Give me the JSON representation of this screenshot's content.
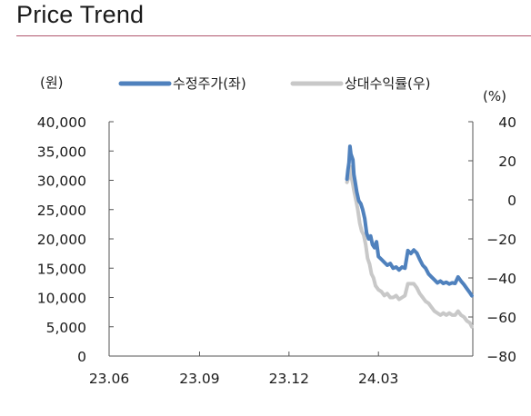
{
  "header": {
    "title": "Price Trend"
  },
  "chart_data": {
    "type": "line",
    "left_unit": "(원)",
    "right_unit": "(%)",
    "x_ticks": [
      "23.06",
      "23.09",
      "23.12",
      "24.03"
    ],
    "x_range": [
      "2023-06",
      "2024-07"
    ],
    "left_axis": {
      "ylim": [
        0,
        40000
      ],
      "ticks": [
        0,
        5000,
        10000,
        15000,
        20000,
        25000,
        30000,
        35000,
        40000
      ],
      "tick_labels": [
        "0",
        "5,000",
        "10,000",
        "15,000",
        "20,000",
        "25,000",
        "30,000",
        "35,000",
        "40,000"
      ]
    },
    "right_axis": {
      "ylim": [
        -80,
        40
      ],
      "ticks": [
        -80,
        -60,
        -40,
        -20,
        0,
        20,
        40
      ],
      "tick_labels": [
        "−80",
        "−60",
        "−40",
        "−20",
        "0",
        "20",
        "40"
      ]
    },
    "grid": false,
    "legend_position": "top",
    "series": [
      {
        "name": "수정주가(좌)",
        "axis": "left",
        "color": "#4f81bd",
        "points": [
          [
            "2024-01-29",
            30200
          ],
          [
            "2024-01-30",
            31800
          ],
          [
            "2024-01-31",
            33000
          ],
          [
            "2024-02-01",
            35800
          ],
          [
            "2024-02-02",
            34500
          ],
          [
            "2024-02-04",
            33500
          ],
          [
            "2024-02-05",
            31000
          ],
          [
            "2024-02-06",
            30000
          ],
          [
            "2024-02-08",
            28000
          ],
          [
            "2024-02-10",
            26500
          ],
          [
            "2024-02-12",
            26000
          ],
          [
            "2024-02-14",
            25000
          ],
          [
            "2024-02-16",
            23500
          ],
          [
            "2024-02-18",
            21000
          ],
          [
            "2024-02-20",
            20000
          ],
          [
            "2024-02-22",
            20500
          ],
          [
            "2024-02-24",
            19000
          ],
          [
            "2024-02-26",
            18500
          ],
          [
            "2024-02-28",
            19500
          ],
          [
            "2024-03-01",
            17000
          ],
          [
            "2024-03-04",
            16500
          ],
          [
            "2024-03-07",
            16000
          ],
          [
            "2024-03-10",
            15500
          ],
          [
            "2024-03-13",
            15800
          ],
          [
            "2024-03-16",
            15000
          ],
          [
            "2024-03-19",
            15200
          ],
          [
            "2024-03-22",
            14700
          ],
          [
            "2024-03-25",
            15200
          ],
          [
            "2024-03-28",
            15000
          ],
          [
            "2024-03-31",
            18000
          ],
          [
            "2024-04-03",
            17500
          ],
          [
            "2024-04-06",
            18100
          ],
          [
            "2024-04-09",
            17600
          ],
          [
            "2024-04-12",
            16500
          ],
          [
            "2024-04-15",
            15500
          ],
          [
            "2024-04-18",
            15000
          ],
          [
            "2024-04-21",
            14000
          ],
          [
            "2024-04-24",
            13500
          ],
          [
            "2024-04-27",
            13000
          ],
          [
            "2024-04-30",
            12500
          ],
          [
            "2024-05-03",
            12800
          ],
          [
            "2024-05-06",
            12400
          ],
          [
            "2024-05-09",
            12600
          ],
          [
            "2024-05-12",
            12300
          ],
          [
            "2024-05-15",
            12500
          ],
          [
            "2024-05-18",
            12400
          ],
          [
            "2024-05-21",
            13500
          ],
          [
            "2024-05-24",
            12800
          ],
          [
            "2024-05-27",
            12200
          ],
          [
            "2024-05-30",
            11500
          ],
          [
            "2024-06-02",
            10800
          ],
          [
            "2024-06-04",
            10300
          ]
        ]
      },
      {
        "name": "상대수익률(우)",
        "axis": "right",
        "color": "#c8c8c8",
        "points": [
          [
            "2024-01-29",
            9
          ],
          [
            "2024-01-31",
            12
          ],
          [
            "2024-02-01",
            17
          ],
          [
            "2024-02-02",
            13
          ],
          [
            "2024-02-04",
            8
          ],
          [
            "2024-02-05",
            5
          ],
          [
            "2024-02-07",
            0
          ],
          [
            "2024-02-09",
            -5
          ],
          [
            "2024-02-11",
            -12
          ],
          [
            "2024-02-13",
            -16
          ],
          [
            "2024-02-15",
            -18
          ],
          [
            "2024-02-17",
            -23
          ],
          [
            "2024-02-19",
            -30
          ],
          [
            "2024-02-21",
            -33
          ],
          [
            "2024-02-23",
            -38
          ],
          [
            "2024-02-25",
            -40
          ],
          [
            "2024-02-27",
            -44
          ],
          [
            "2024-03-01",
            -46
          ],
          [
            "2024-03-04",
            -47
          ],
          [
            "2024-03-07",
            -49
          ],
          [
            "2024-03-10",
            -48
          ],
          [
            "2024-03-13",
            -50
          ],
          [
            "2024-03-16",
            -50
          ],
          [
            "2024-03-19",
            -49
          ],
          [
            "2024-03-22",
            -51
          ],
          [
            "2024-03-25",
            -50
          ],
          [
            "2024-03-28",
            -49
          ],
          [
            "2024-03-31",
            -43
          ],
          [
            "2024-04-03",
            -43
          ],
          [
            "2024-04-06",
            -43
          ],
          [
            "2024-04-09",
            -45
          ],
          [
            "2024-04-12",
            -48
          ],
          [
            "2024-04-15",
            -50
          ],
          [
            "2024-04-18",
            -52
          ],
          [
            "2024-04-21",
            -53
          ],
          [
            "2024-04-24",
            -55
          ],
          [
            "2024-04-27",
            -57
          ],
          [
            "2024-04-30",
            -58
          ],
          [
            "2024-05-03",
            -59
          ],
          [
            "2024-05-06",
            -58
          ],
          [
            "2024-05-09",
            -59
          ],
          [
            "2024-05-12",
            -58
          ],
          [
            "2024-05-15",
            -59
          ],
          [
            "2024-05-18",
            -59
          ],
          [
            "2024-05-21",
            -57
          ],
          [
            "2024-05-24",
            -59
          ],
          [
            "2024-05-27",
            -60
          ],
          [
            "2024-05-30",
            -62
          ],
          [
            "2024-06-02",
            -63
          ],
          [
            "2024-06-04",
            -65
          ]
        ]
      }
    ]
  }
}
